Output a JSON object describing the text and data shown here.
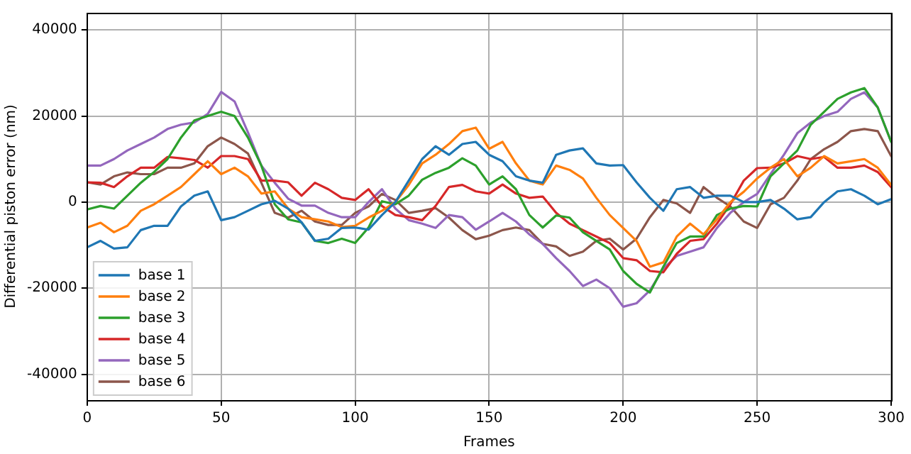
{
  "chart_data": {
    "type": "line",
    "xlabel": "Frames",
    "ylabel": "Differential piston error (nm)",
    "x": [
      0,
      5,
      10,
      15,
      20,
      25,
      30,
      35,
      40,
      45,
      50,
      55,
      60,
      65,
      70,
      75,
      80,
      85,
      90,
      95,
      100,
      105,
      110,
      115,
      120,
      125,
      130,
      135,
      140,
      145,
      150,
      155,
      160,
      165,
      170,
      175,
      180,
      185,
      190,
      195,
      200,
      205,
      210,
      215,
      220,
      225,
      230,
      235,
      240,
      245,
      250,
      255,
      260,
      265,
      270,
      275,
      280,
      285,
      290,
      295,
      300
    ],
    "xlim": [
      0,
      300
    ],
    "xticks": [
      0,
      50,
      100,
      150,
      200,
      250,
      300
    ],
    "ylim": [
      -46000,
      44000
    ],
    "yticks": [
      -40000,
      -20000,
      0,
      20000,
      40000
    ],
    "grid": true,
    "legend": "bottom left",
    "marker": "none",
    "line_style": "solid",
    "series": [
      {
        "name": "base 1",
        "color": "#1f77b4",
        "values": [
          -10500,
          -9000,
          -10800,
          -10500,
          -6500,
          -5500,
          -5500,
          -1000,
          1500,
          2500,
          -4200,
          -3500,
          -2000,
          -500,
          300,
          -1500,
          -4700,
          -9000,
          -8500,
          -6000,
          -5900,
          -6400,
          -3000,
          0,
          5000,
          10000,
          13000,
          11000,
          13500,
          14000,
          11000,
          9500,
          6000,
          5000,
          4500,
          11000,
          12000,
          12500,
          9000,
          8500,
          8600,
          4600,
          1000,
          -2000,
          3000,
          3500,
          1000,
          1500,
          1500,
          0,
          0,
          500,
          -1500,
          -4000,
          -3500,
          0,
          2500,
          3000,
          1500,
          -500,
          700
        ]
      },
      {
        "name": "base 2",
        "color": "#ff7f0e",
        "values": [
          -5900,
          -4800,
          -7000,
          -5500,
          -2000,
          -500,
          1500,
          3500,
          6500,
          9500,
          6500,
          8000,
          6000,
          2000,
          2500,
          -1500,
          -3500,
          -4000,
          -4500,
          -5800,
          -5500,
          -3600,
          -2000,
          0,
          4000,
          9000,
          11000,
          13500,
          16500,
          17300,
          12400,
          14000,
          9000,
          5000,
          4100,
          8500,
          7500,
          5500,
          1000,
          -3000,
          -6000,
          -9000,
          -15000,
          -14000,
          -8000,
          -5000,
          -7500,
          -4000,
          0,
          2400,
          5500,
          8000,
          10000,
          6000,
          8000,
          10700,
          9000,
          9500,
          10000,
          8000,
          4000
        ]
      },
      {
        "name": "base 3",
        "color": "#2ca02c",
        "values": [
          -1700,
          -900,
          -1500,
          1500,
          4500,
          7000,
          10000,
          15000,
          19000,
          20000,
          21000,
          20000,
          15000,
          8500,
          -500,
          -4000,
          -4700,
          -9000,
          -9500,
          -8500,
          -9500,
          -5900,
          200,
          -500,
          1500,
          5200,
          6800,
          8000,
          10200,
          8500,
          4100,
          6000,
          3000,
          -3000,
          -5900,
          -3100,
          -3600,
          -7000,
          -9000,
          -11000,
          -16000,
          -19000,
          -21000,
          -15000,
          -9500,
          -8000,
          -8000,
          -3000,
          -1500,
          -900,
          -1000,
          6000,
          9000,
          12000,
          18000,
          21000,
          24000,
          25500,
          26500,
          22000,
          14000
        ]
      },
      {
        "name": "base 4",
        "color": "#d62728",
        "values": [
          4600,
          4500,
          3500,
          6000,
          8000,
          8000,
          10500,
          10200,
          9800,
          8000,
          10700,
          10700,
          10000,
          5000,
          5000,
          4600,
          1500,
          4500,
          3000,
          1000,
          500,
          3000,
          -900,
          -3000,
          -3500,
          -4200,
          -900,
          3500,
          4000,
          2500,
          2000,
          4100,
          2000,
          1000,
          1300,
          -2500,
          -5000,
          -6500,
          -8000,
          -9500,
          -13000,
          -13500,
          -16000,
          -16300,
          -12000,
          -9000,
          -8600,
          -5000,
          -500,
          5000,
          7900,
          8000,
          9000,
          10700,
          10000,
          10500,
          8000,
          8000,
          8500,
          7000,
          3500
        ]
      },
      {
        "name": "base 5",
        "color": "#9467bd",
        "values": [
          8500,
          8500,
          10000,
          12000,
          13500,
          15000,
          17000,
          18000,
          18500,
          20500,
          25600,
          23400,
          16200,
          8500,
          4500,
          800,
          -800,
          -800,
          -2500,
          -3500,
          -3500,
          0,
          3000,
          -1500,
          -4200,
          -5000,
          -6000,
          -3000,
          -3500,
          -6400,
          -4500,
          -2500,
          -4500,
          -7500,
          -9700,
          -13000,
          -16000,
          -19500,
          -18000,
          -20000,
          -24300,
          -23500,
          -20500,
          -15500,
          -12500,
          -11500,
          -10500,
          -6000,
          -2500,
          0,
          1900,
          6500,
          11000,
          16000,
          18500,
          20000,
          21000,
          24000,
          25500,
          22000,
          14000
        ]
      },
      {
        "name": "base 6",
        "color": "#8c564b",
        "values": [
          4600,
          4100,
          6000,
          6900,
          6500,
          6500,
          8000,
          8000,
          9000,
          13000,
          15000,
          13500,
          11300,
          4500,
          -2500,
          -3600,
          -2000,
          -4500,
          -5300,
          -5300,
          -2500,
          -1000,
          1900,
          500,
          -2500,
          -2000,
          -1400,
          -3600,
          -6500,
          -8600,
          -7800,
          -6500,
          -5900,
          -6500,
          -9700,
          -10300,
          -12500,
          -11500,
          -9000,
          -8500,
          -11000,
          -8500,
          -3500,
          500,
          -300,
          -2500,
          3500,
          1000,
          -1000,
          -4500,
          -6000,
          -500,
          1000,
          5000,
          10000,
          12300,
          14000,
          16500,
          17000,
          16500,
          10700
        ]
      }
    ]
  }
}
